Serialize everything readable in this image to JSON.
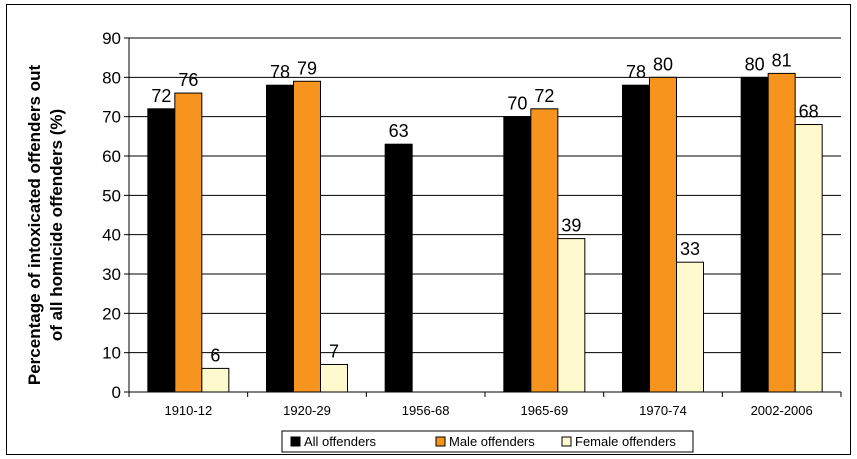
{
  "chart_data": {
    "type": "bar",
    "title": "",
    "xlabel": "",
    "ylabel_lines": [
      "Percentage of intoxicated offenders out",
      "of all homicide offenders (%)"
    ],
    "ylim": [
      0,
      90
    ],
    "yticks": [
      0,
      10,
      20,
      30,
      40,
      50,
      60,
      70,
      80,
      90
    ],
    "grid": true,
    "legend_position": "bottom",
    "categories": [
      "1910-12",
      "1920-29",
      "1956-68",
      "1965-69",
      "1970-74",
      "2002-2006"
    ],
    "series": [
      {
        "name": "All offenders",
        "color": "#000000",
        "values": [
          72,
          78,
          63,
          70,
          78,
          80
        ]
      },
      {
        "name": "Male offenders",
        "color": "#F7941D",
        "values": [
          76,
          79,
          null,
          72,
          80,
          81
        ]
      },
      {
        "name": "Female offenders",
        "color": "#FFFACD",
        "values": [
          6,
          7,
          null,
          39,
          33,
          68
        ]
      }
    ]
  }
}
